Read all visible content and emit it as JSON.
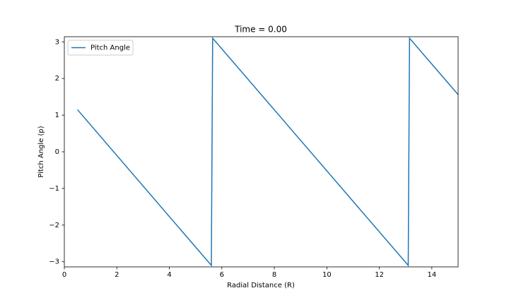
{
  "chart_data": {
    "type": "line",
    "title": "Time = 0.00",
    "x_label": "Radial Distance (R)",
    "y_label": "Pitch Angle (p)",
    "x": [
      0.5,
      5.6,
      5.65,
      13.1,
      13.15,
      15
    ],
    "series": [
      {
        "name": "Pitch Angle",
        "color": "#1f77b4",
        "values": [
          1.15,
          -3.1,
          3.1,
          -3.1,
          3.1,
          1.56
        ]
      }
    ],
    "xlim": [
      0,
      15
    ],
    "xticks": [
      0,
      2,
      4,
      6,
      8,
      10,
      12,
      14
    ],
    "ylim": [
      -3.14,
      3.14
    ],
    "yticks": [
      {
        "value": -3,
        "label": "−3"
      },
      {
        "value": -2,
        "label": "−2"
      },
      {
        "value": -1,
        "label": "−1"
      },
      0,
      1,
      2,
      3
    ],
    "grid": false,
    "legend": "upper left"
  }
}
